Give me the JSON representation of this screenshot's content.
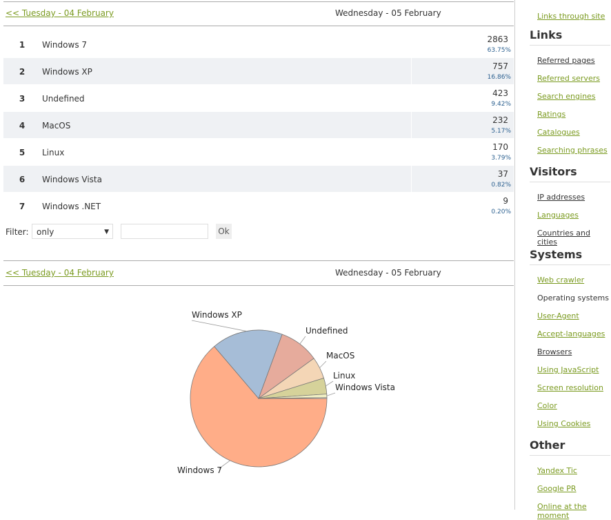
{
  "nav": {
    "prev": "<< Tuesday - 04 February",
    "current": "Wednesday - 05 February"
  },
  "table": {
    "rows": [
      {
        "rank": 1,
        "name": "Windows 7",
        "count": 2863,
        "percent": "63.75%"
      },
      {
        "rank": 2,
        "name": "Windows XP",
        "count": 757,
        "percent": "16.86%"
      },
      {
        "rank": 3,
        "name": "Undefined",
        "count": 423,
        "percent": "9.42%"
      },
      {
        "rank": 4,
        "name": "MacOS",
        "count": 232,
        "percent": "5.17%"
      },
      {
        "rank": 5,
        "name": "Linux",
        "count": 170,
        "percent": "3.79%"
      },
      {
        "rank": 6,
        "name": "Windows Vista",
        "count": 37,
        "percent": "0.82%"
      },
      {
        "rank": 7,
        "name": "Windows .NET",
        "count": 9,
        "percent": "0.20%"
      }
    ]
  },
  "filter": {
    "label": "Filter:",
    "select": "only",
    "button": "Ok"
  },
  "chart_data": {
    "type": "pie",
    "categories": [
      "Windows 7",
      "Windows XP",
      "Undefined",
      "MacOS",
      "Linux",
      "Windows Vista",
      null
    ],
    "values": [
      2863,
      757,
      423,
      232,
      170,
      37,
      9
    ],
    "colors": [
      "#ffad88",
      "#a6bdd7",
      "#e6ab9c",
      "#f4d6b6",
      "#d6d29a",
      "#f3f1c4",
      "#ffffff"
    ]
  },
  "sidebar": {
    "top_link": "Links through site",
    "sections": [
      {
        "title": "Links",
        "items": [
          "Referred pages",
          "Referred servers",
          "Search engines",
          "Ratings",
          "Catalogues",
          "Searching phrases"
        ]
      },
      {
        "title": "Visitors",
        "items": [
          "IP addresses",
          "Languages",
          "Countries and cities"
        ]
      },
      {
        "title": "Systems",
        "items": [
          "Web crawler",
          "Operating systems",
          "User-Agent",
          "Accept-languages",
          "Browsers",
          "Using JavaScript",
          "Screen resolution",
          "Color",
          "Using Cookies"
        ]
      },
      {
        "title": "Other",
        "items": [
          "Yandex Tic",
          "Google PR",
          "Online at the moment"
        ]
      }
    ]
  }
}
